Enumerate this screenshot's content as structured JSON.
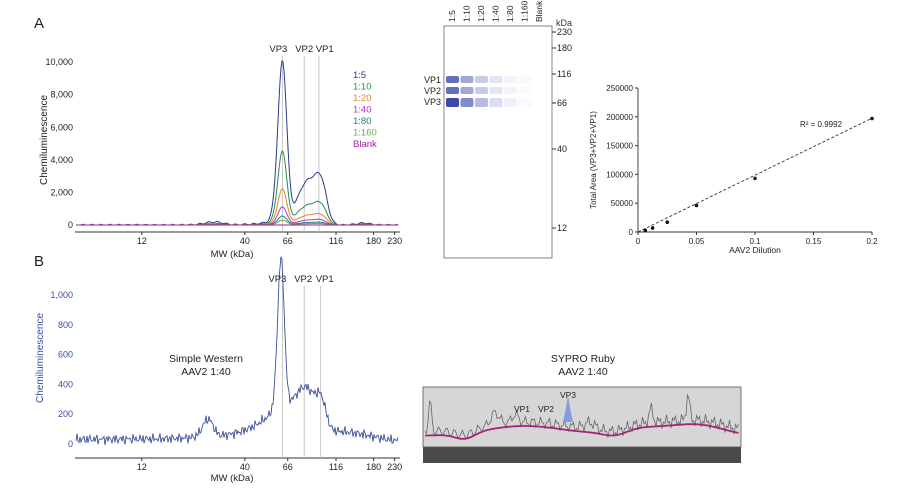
{
  "panels": {
    "a": "A",
    "b": "B"
  },
  "chart_data": [
    {
      "id": "a1",
      "type": "line",
      "ylabel": "Chemiluminescence",
      "xlabel": "MW (kDa)",
      "x_ticks": [
        "12",
        "40",
        "66",
        "116",
        "180",
        "230"
      ],
      "y_ticks": [
        "0",
        "2,000",
        "4,000",
        "6,000",
        "8,000",
        "10,000"
      ],
      "ylim": [
        0,
        10500
      ],
      "peak_labels": [
        "VP3",
        "VP2",
        "VP1"
      ],
      "series": [
        {
          "name": "1:5",
          "color": "#2b3a8c",
          "scale": 1.0
        },
        {
          "name": "1:10",
          "color": "#2a8a4e",
          "scale": 0.45
        },
        {
          "name": "1:20",
          "color": "#e08a1e",
          "scale": 0.22
        },
        {
          "name": "1:40",
          "color": "#b03ab8",
          "scale": 0.11
        },
        {
          "name": "1:80",
          "color": "#2a7a7a",
          "scale": 0.055
        },
        {
          "name": "1:160",
          "color": "#6aa84f",
          "scale": 0.03
        },
        {
          "name": "Blank",
          "color": "#a020a0",
          "scale": 0.0
        }
      ],
      "peaks": [
        {
          "label": "VP3",
          "mw": 62,
          "value": 9700
        },
        {
          "label": "VP2",
          "mw": 80,
          "value": 2200
        },
        {
          "label": "VP1",
          "mw": 95,
          "value": 2600
        }
      ]
    },
    {
      "id": "gel",
      "type": "table",
      "lanes": [
        "1:5",
        "1:10",
        "1:20",
        "1:40",
        "1:80",
        "1:160",
        "Blank"
      ],
      "unit": "kDa",
      "markers": [
        "230",
        "180",
        "116",
        "66",
        "40",
        "12"
      ],
      "band_labels": [
        "VP1",
        "VP2",
        "VP3"
      ]
    },
    {
      "id": "a3",
      "type": "scatter",
      "xlabel": "AAV2 Dilution",
      "ylabel": "Total Area (VP3+VP2+VP1)",
      "xlim": [
        0,
        0.2
      ],
      "ylim": [
        0,
        250000
      ],
      "x_ticks": [
        "0",
        "0.05",
        "0.1",
        "0.15",
        "0.2"
      ],
      "y_ticks": [
        "0",
        "50000",
        "100000",
        "150000",
        "200000",
        "250000"
      ],
      "points": [
        [
          0.00625,
          3000
        ],
        [
          0.0125,
          7000
        ],
        [
          0.025,
          17000
        ],
        [
          0.05,
          46000
        ],
        [
          0.1,
          93000
        ],
        [
          0.2,
          197000
        ]
      ],
      "annotation": "R² = 0.9992"
    },
    {
      "id": "b1",
      "type": "line",
      "ylabel": "Chemiluminescence",
      "xlabel": "MW (kDa)",
      "x_ticks": [
        "12",
        "40",
        "66",
        "116",
        "180",
        "230"
      ],
      "y_ticks": [
        "0",
        "200",
        "400",
        "600",
        "800",
        "1,000"
      ],
      "ylim": [
        -50,
        1100
      ],
      "peak_labels": [
        "VP3",
        "VP2",
        "VP1"
      ],
      "annotation": [
        "Simple Western",
        "AAV2 1:40"
      ],
      "series": [
        {
          "name": "AAV2 1:40",
          "color": "#3a4f9a"
        }
      ]
    },
    {
      "id": "b2",
      "type": "line",
      "title": [
        "SYPRO Ruby",
        "AAV2 1:40"
      ],
      "peak_labels": [
        "VP1",
        "VP2",
        "VP3"
      ]
    }
  ]
}
